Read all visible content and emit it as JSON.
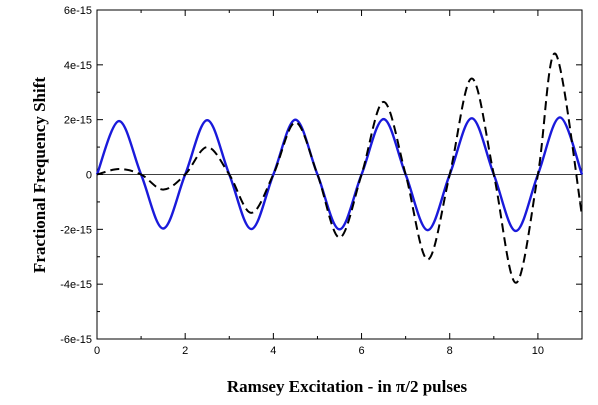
{
  "chart_data": {
    "type": "line",
    "title": "",
    "xlabel": "Ramsey Excitation - in π/2 pulses",
    "ylabel": "Fractional Frequency Shift",
    "xlim": [
      0,
      11
    ],
    "ylim": [
      -6e-15,
      6e-15
    ],
    "x_ticks": [
      0,
      2,
      4,
      6,
      8,
      10
    ],
    "x_tick_labels": [
      "0",
      "2",
      "4",
      "6",
      "8",
      "10"
    ],
    "y_ticks": [
      -6e-15,
      -4e-15,
      -2e-15,
      0,
      2e-15,
      4e-15,
      6e-15
    ],
    "y_tick_labels": [
      "-6e-15",
      "-4e-15",
      "-2e-15",
      "0",
      "2e-15",
      "4e-15",
      "6e-15"
    ],
    "grid": false,
    "legend": "none",
    "zero_line": true,
    "series": [
      {
        "style": "solid",
        "color": "#1a1adb",
        "x": [
          0,
          0.5,
          1,
          1.5,
          2,
          2.5,
          3,
          3.5,
          4,
          4.5,
          5,
          5.5,
          6,
          6.5,
          7,
          7.5,
          8,
          8.5,
          9,
          9.5,
          10,
          10.5,
          11
        ],
        "y": [
          0,
          1.95e-15,
          0,
          -1.97e-15,
          0,
          1.98e-15,
          0,
          -1.99e-15,
          0,
          2e-15,
          0,
          -2e-15,
          0,
          2.02e-15,
          0,
          -2.03e-15,
          0,
          2.05e-15,
          0,
          -2.06e-15,
          0,
          2.08e-15,
          0
        ]
      },
      {
        "style": "dashed",
        "color": "#000000",
        "x": [
          0,
          0.5,
          1,
          1.5,
          2,
          2.5,
          3,
          3.5,
          4,
          4.5,
          5,
          5.5,
          6,
          6.5,
          7,
          7.5,
          8,
          8.5,
          9,
          9.5,
          10,
          10.4,
          11
        ],
        "y": [
          0,
          2e-16,
          0,
          -5.5e-16,
          0,
          1e-15,
          0,
          -1.4e-15,
          0,
          1.9e-15,
          0,
          -2.3e-15,
          0,
          2.65e-15,
          0,
          -3.1e-15,
          0,
          3.5e-15,
          0,
          -3.95e-15,
          0,
          4.4e-15,
          -1.5e-15
        ]
      }
    ]
  }
}
